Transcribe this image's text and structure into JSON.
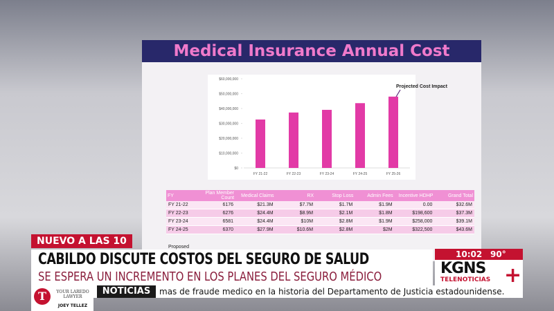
{
  "slide": {
    "title": "Medical Insurance Annual Cost"
  },
  "chart_data": {
    "type": "bar",
    "annotation": "Projected Cost Impact",
    "categories": [
      "FY 21-22",
      "FY 22-23",
      "FY 23-24",
      "FY 24-25",
      "FY 25-26"
    ],
    "values": [
      32600000,
      37300000,
      39100000,
      43600000,
      48000000
    ],
    "color": "#e23aa6",
    "ylim": [
      0,
      60000000
    ],
    "yticks": [
      {
        "value": 0,
        "label": "$0"
      },
      {
        "value": 10000000,
        "label": "$10,000,000"
      },
      {
        "value": 20000000,
        "label": "$20,000,000"
      },
      {
        "value": 30000000,
        "label": "$30,000,000"
      },
      {
        "value": 40000000,
        "label": "$40,000,000"
      },
      {
        "value": 50000000,
        "label": "$50,000,000"
      },
      {
        "value": 60000000,
        "label": "$60,000,000"
      }
    ],
    "grid": false
  },
  "table": {
    "headers": [
      "FY",
      "Plan Member Count",
      "Medical Claims",
      "RX",
      "Stop Loss",
      "Admin Fees",
      "Incentive HDHP",
      "Grand Total"
    ],
    "rows": [
      [
        "FY 21-22",
        "6176",
        "$21.3M",
        "$7.7M",
        "$1.7M",
        "$1.9M",
        "0.00",
        "$32.6M"
      ],
      [
        "FY 22-23",
        "6276",
        "$24.4M",
        "$8.9M",
        "$2.1M",
        "$1.8M",
        "$198,600",
        "$37.3M"
      ],
      [
        "FY 23-24",
        "6581",
        "$24.4M",
        "$10M",
        "$2.8M",
        "$1.9M",
        "$258,000",
        "$39.1M"
      ],
      [
        "FY 24-25",
        "6370",
        "$27.9M",
        "$10.6M",
        "$2.8M",
        "$2M",
        "$322,500",
        "$43.6M"
      ]
    ],
    "next_row_label": "Proposed"
  },
  "lower_third": {
    "tag": "NUEVO A LAS 10",
    "headline": "CABILDO DISCUTE COSTOS DEL SEGURO DE SALUD",
    "subheadline": "SE ESPERA UN INCREMENTO EN LOS PLANES DEL SEGURO MÉDICO",
    "time": "10:02",
    "temperature": "90°",
    "station": "KGNS",
    "network": "TELENOTICIAS",
    "ticker_label": "NOTICIAS",
    "ticker_text": "mas de fraude medico en la historia del Departamento de Justicia estadounidense.",
    "sponsor_name": "YOUR LAREDO LAWYER",
    "sponsor_person": "JOEY TELLEZ"
  }
}
